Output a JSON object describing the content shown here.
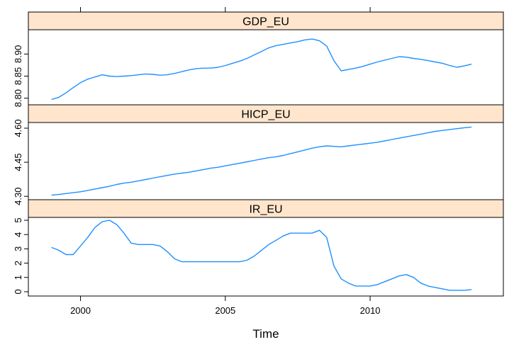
{
  "chart_data": {
    "type": "line",
    "xlabel": "Time",
    "x_ticks": [
      2000,
      2005,
      2010
    ],
    "xlim": [
      1998.2,
      2014.6
    ],
    "line_color": "#1e90ff",
    "strip_color": "#ffe5cc",
    "x": [
      1999.0,
      1999.25,
      1999.5,
      1999.75,
      2000.0,
      2000.25,
      2000.5,
      2000.75,
      2001.0,
      2001.25,
      2001.5,
      2001.75,
      2002.0,
      2002.25,
      2002.5,
      2002.75,
      2003.0,
      2003.25,
      2003.5,
      2003.75,
      2004.0,
      2004.25,
      2004.5,
      2004.75,
      2005.0,
      2005.25,
      2005.5,
      2005.75,
      2006.0,
      2006.25,
      2006.5,
      2006.75,
      2007.0,
      2007.25,
      2007.5,
      2007.75,
      2008.0,
      2008.25,
      2008.5,
      2008.75,
      2009.0,
      2009.25,
      2009.5,
      2009.75,
      2010.0,
      2010.25,
      2010.5,
      2010.75,
      2011.0,
      2011.25,
      2011.5,
      2011.75,
      2012.0,
      2012.25,
      2012.5,
      2012.75,
      2013.0,
      2013.25,
      2013.5
    ],
    "panels": [
      {
        "name": "GDP_EU",
        "y_ticks": [
          "8.80",
          "8.85",
          "8.90"
        ],
        "y_tick_values": [
          8.8,
          8.85,
          8.9
        ],
        "ylim": [
          8.785,
          8.955
        ],
        "values": [
          8.797,
          8.802,
          8.812,
          8.824,
          8.835,
          8.843,
          8.848,
          8.853,
          8.85,
          8.849,
          8.85,
          8.851,
          8.853,
          8.855,
          8.854,
          8.852,
          8.853,
          8.856,
          8.86,
          8.864,
          8.867,
          8.868,
          8.868,
          8.87,
          8.874,
          8.879,
          8.884,
          8.89,
          8.898,
          8.906,
          8.914,
          8.919,
          8.922,
          8.925,
          8.928,
          8.932,
          8.934,
          8.93,
          8.918,
          8.885,
          8.862,
          8.865,
          8.868,
          8.872,
          8.877,
          8.882,
          8.886,
          8.89,
          8.894,
          8.893,
          8.89,
          8.888,
          8.885,
          8.882,
          8.879,
          8.874,
          8.87,
          8.873,
          8.877
        ]
      },
      {
        "name": "HICP_EU",
        "y_ticks": [
          "4.30",
          "4.45",
          "4.60"
        ],
        "y_tick_values": [
          4.3,
          4.45,
          4.6
        ],
        "ylim": [
          4.285,
          4.625
        ],
        "values": [
          4.305,
          4.308,
          4.312,
          4.316,
          4.32,
          4.326,
          4.332,
          4.338,
          4.344,
          4.352,
          4.358,
          4.362,
          4.368,
          4.374,
          4.38,
          4.386,
          4.392,
          4.398,
          4.402,
          4.406,
          4.412,
          4.418,
          4.424,
          4.428,
          4.434,
          4.44,
          4.446,
          4.452,
          4.458,
          4.464,
          4.47,
          4.474,
          4.48,
          4.488,
          4.496,
          4.504,
          4.512,
          4.518,
          4.522,
          4.52,
          4.518,
          4.522,
          4.526,
          4.53,
          4.534,
          4.538,
          4.544,
          4.55,
          4.556,
          4.562,
          4.568,
          4.574,
          4.58,
          4.586,
          4.59,
          4.594,
          4.598,
          4.602,
          4.605
        ]
      },
      {
        "name": "IR_EU",
        "y_ticks": [
          "0",
          "1",
          "2",
          "3",
          "4",
          "5"
        ],
        "y_tick_values": [
          0,
          1,
          2,
          3,
          4,
          5
        ],
        "ylim": [
          -0.3,
          5.2
        ],
        "values": [
          3.1,
          2.9,
          2.6,
          2.6,
          3.2,
          3.8,
          4.5,
          4.9,
          5.0,
          4.7,
          4.1,
          3.4,
          3.3,
          3.3,
          3.3,
          3.2,
          2.8,
          2.3,
          2.1,
          2.1,
          2.1,
          2.1,
          2.1,
          2.1,
          2.1,
          2.1,
          2.1,
          2.2,
          2.5,
          2.9,
          3.3,
          3.6,
          3.9,
          4.1,
          4.1,
          4.1,
          4.1,
          4.3,
          3.8,
          1.8,
          0.9,
          0.6,
          0.4,
          0.4,
          0.4,
          0.5,
          0.7,
          0.9,
          1.1,
          1.2,
          1.0,
          0.6,
          0.4,
          0.3,
          0.2,
          0.1,
          0.1,
          0.1,
          0.15
        ]
      }
    ]
  }
}
